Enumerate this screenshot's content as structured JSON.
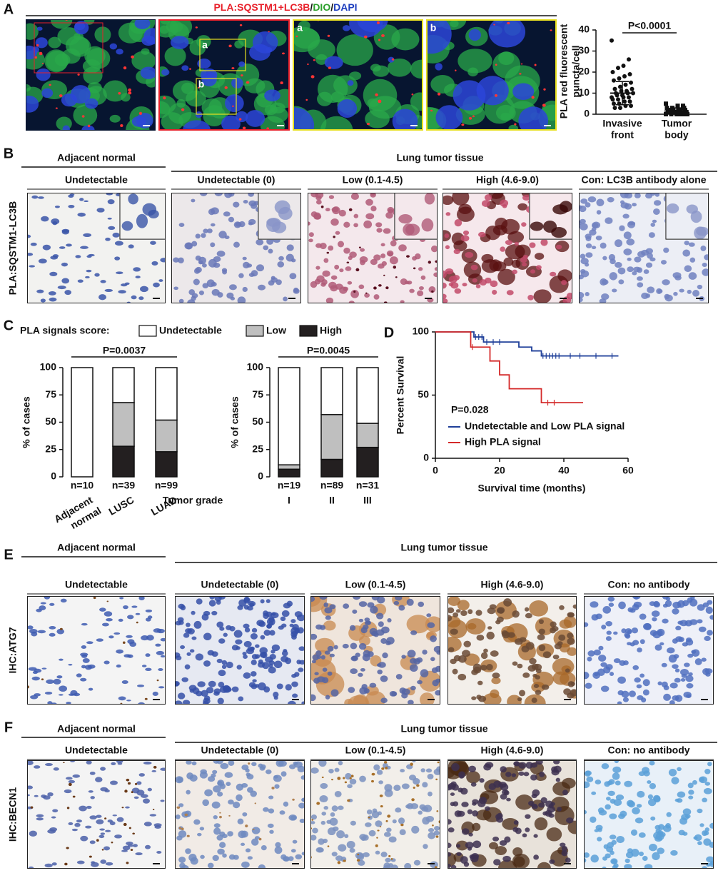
{
  "A": {
    "letter": "A",
    "title": [
      "PLA:SQSTM1+LC3B",
      "/",
      "DIO",
      "/",
      "DAPI"
    ],
    "title_colors": [
      "#e8202a",
      "#111111",
      "#2ca02c",
      "#111111",
      "#1f3fbf"
    ],
    "insets": [
      "a",
      "b"
    ],
    "chart": {
      "type": "scatter",
      "ylabel": [
        "PLA red fluorescent",
        "puncta/cell"
      ],
      "ylim": [
        0,
        40
      ],
      "yticks": [
        0,
        10,
        20,
        30,
        40
      ],
      "categories": [
        [
          "Invasive",
          "front"
        ],
        [
          "Tumor",
          "body"
        ]
      ],
      "annotation": "P<0.0001",
      "groups": [
        {
          "values": [
            35,
            26,
            23,
            22,
            20,
            19,
            18,
            17,
            16,
            15,
            14,
            13,
            12,
            12,
            11,
            11,
            10,
            10,
            10,
            9,
            9,
            8,
            8,
            8,
            7,
            7,
            6,
            6,
            5,
            5,
            4,
            4,
            3,
            3
          ],
          "mean": 10,
          "sd": 5.5
        },
        {
          "values": [
            5,
            4,
            4,
            3,
            3,
            3,
            2,
            2,
            2,
            2,
            2,
            1,
            1,
            1,
            1,
            1,
            1,
            0,
            0,
            0,
            0,
            0,
            0,
            0
          ],
          "mean": 1.5,
          "sd": 1.5
        }
      ]
    }
  },
  "B": {
    "letter": "B",
    "side_label": "PLA:SQSTM1-LC3B",
    "group_left": "Adjacent normal",
    "group_right": "Lung tumor tissue",
    "columns": [
      "Undetectable",
      "Undetectable (0)",
      "Low (0.1-4.5)",
      "High (4.6-9.0)",
      "Con: LC3B antibody alone"
    ]
  },
  "C": {
    "letter": "C",
    "legend": {
      "title": "PLA signals score:",
      "items": [
        {
          "name": "Undetectable",
          "color": "#ffffff"
        },
        {
          "name": "Low",
          "color": "#bfbfbf"
        },
        {
          "name": "High",
          "color": "#231f20"
        }
      ]
    },
    "charts": [
      {
        "type": "bar",
        "stacked": true,
        "ylabel": "% of cases",
        "ylim": [
          0,
          100
        ],
        "yticks": [
          0,
          25,
          50,
          75,
          100
        ],
        "annotation": "P=0.0037",
        "categories": [
          [
            "Adjacent",
            "normal"
          ],
          [
            "LUSC"
          ],
          [
            "LUAD"
          ]
        ],
        "counts": [
          "n=10",
          "n=39",
          "n=99"
        ],
        "series": [
          [
            100,
            32,
            48
          ],
          [
            0,
            40,
            29
          ],
          [
            0,
            28,
            23
          ]
        ]
      },
      {
        "type": "bar",
        "stacked": true,
        "ylabel": "% of cases",
        "ylim": [
          0,
          100
        ],
        "yticks": [
          0,
          25,
          50,
          75,
          100
        ],
        "annotation": "P=0.0045",
        "axis_title": "Tumor grade",
        "categories": [
          [
            "I"
          ],
          [
            "II"
          ],
          [
            "III"
          ]
        ],
        "counts": [
          "n=19",
          "n=89",
          "n=31"
        ],
        "series": [
          [
            89,
            43,
            51
          ],
          [
            4,
            41,
            22
          ],
          [
            7,
            16,
            27
          ]
        ]
      }
    ]
  },
  "D": {
    "letter": "D",
    "chart": {
      "type": "line",
      "step": true,
      "xlabel": "Survival time (months)",
      "ylabel": "Percent Survival",
      "xlim": [
        0,
        60
      ],
      "xticks": [
        0,
        20,
        40,
        60
      ],
      "ylim": [
        0,
        100
      ],
      "yticks": [
        0,
        50,
        100
      ],
      "annotation": "P=0.028",
      "series": [
        {
          "name": "Undetectable and Low PLA signal",
          "color": "#1f3f99",
          "x": [
            0,
            12,
            15,
            26,
            30,
            33,
            57
          ],
          "y": [
            100,
            96,
            92,
            88,
            85,
            81,
            81
          ],
          "censored": [
            12.5,
            13.5,
            14.5,
            16,
            18,
            20,
            33.5,
            34.5,
            35.5,
            36.5,
            37.5,
            38.5,
            42,
            45,
            50,
            55
          ]
        },
        {
          "name": "High PLA signal",
          "color": "#d42a2a",
          "x": [
            0,
            11,
            17,
            20,
            23,
            33,
            46
          ],
          "y": [
            100,
            88,
            77,
            66,
            55,
            44,
            44
          ],
          "censored": [
            11.5,
            35,
            37
          ]
        }
      ]
    }
  },
  "E": {
    "letter": "E",
    "side_label": "IHC:ATG7",
    "group_left": "Adjacent normal",
    "group_right": "Lung tumor tissue",
    "columns": [
      "Undetectable",
      "Undetectable (0)",
      "Low (0.1-4.5)",
      "High (4.6-9.0)",
      "Con: no antibody"
    ]
  },
  "F": {
    "letter": "F",
    "side_label": "IHC:BECN1",
    "group_left": "Adjacent normal",
    "group_right": "Lung tumor tissue",
    "columns": [
      "Undetectable",
      "Undetectable (0)",
      "Low (0.1-4.5)",
      "High (4.6-9.0)",
      "Con: no antibody"
    ]
  }
}
